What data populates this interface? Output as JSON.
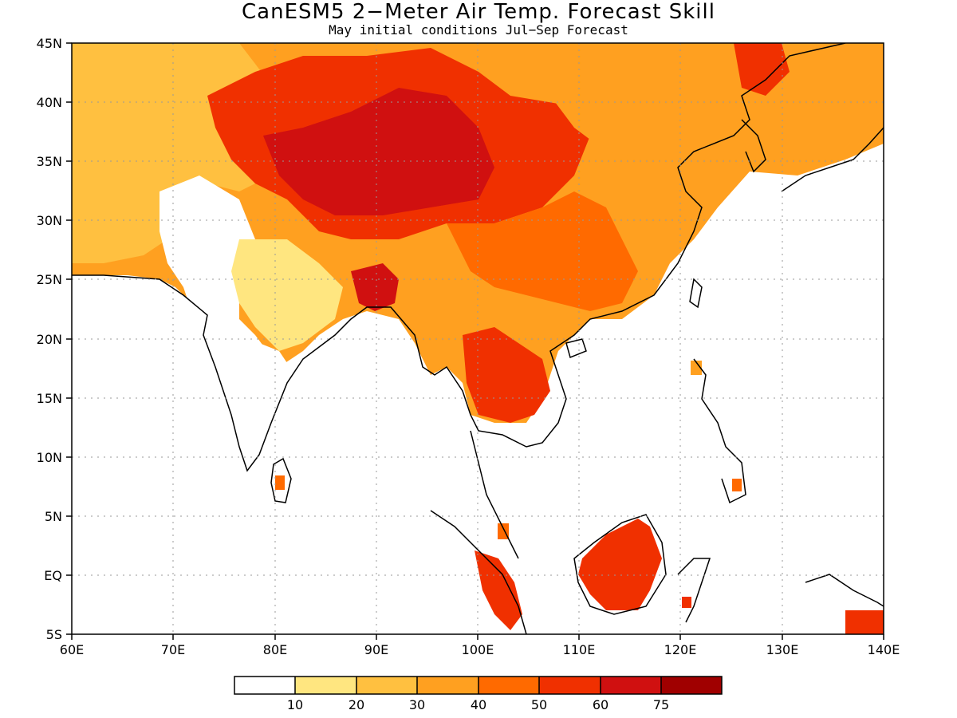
{
  "title": "CanESM5 2−Meter Air Temp. Forecast Skill",
  "subtitle": "May initial conditions  Jul−Sep Forecast",
  "map": {
    "lon_range": [
      60,
      140
    ],
    "lat_range": [
      -5,
      45
    ],
    "lon_ticks": [
      "60E",
      "70E",
      "80E",
      "90E",
      "100E",
      "110E",
      "120E",
      "130E",
      "140E"
    ],
    "lat_ticks": [
      "5S",
      "EQ",
      "5N",
      "10N",
      "15N",
      "20N",
      "25N",
      "30N",
      "35N",
      "40N",
      "45N"
    ],
    "gridlines": "dotted"
  },
  "colorbar": {
    "labels": [
      "10",
      "20",
      "30",
      "40",
      "50",
      "60",
      "75"
    ],
    "colors": [
      "#ffffff",
      "#ffe680",
      "#ffc040",
      "#ffa020",
      "#ff6a00",
      "#f03000",
      "#d01010",
      "#a00000"
    ]
  }
}
